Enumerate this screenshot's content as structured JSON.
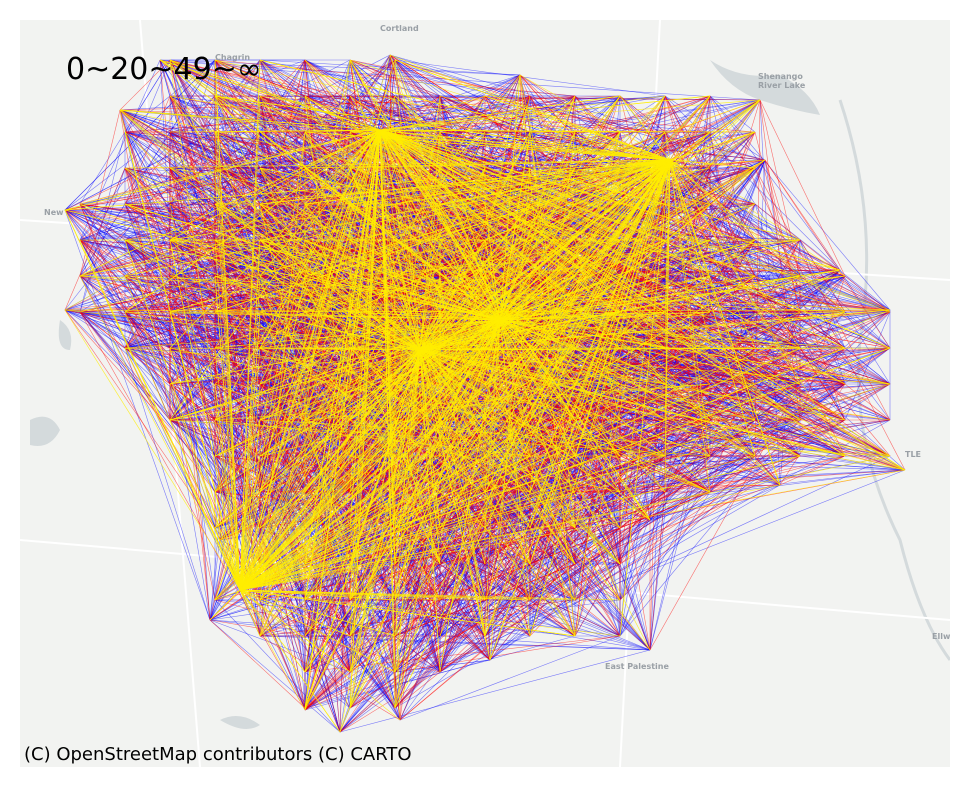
{
  "map": {
    "legend_title": "0~20~49~∞",
    "attribution": "(C) OpenStreetMap contributors (C) CARTO",
    "place_labels": [
      {
        "name": "Cortland",
        "text": "Cortland"
      },
      {
        "name": "chagrin",
        "text": "Chagrin"
      },
      {
        "name": "newton",
        "text": "New"
      },
      {
        "name": "shenango",
        "text": "Shenango River Lake"
      },
      {
        "name": "east-palestine",
        "text": "East Palestine"
      },
      {
        "name": "ellwood",
        "text": "Ellw"
      },
      {
        "name": "newcastle",
        "text": "TLE"
      }
    ],
    "colors": {
      "background": "#f2f3f1",
      "water": "#d4dadc",
      "road": "#ffffff",
      "low": "#0000ff",
      "mid": "#ff0000",
      "high": "#ffee00"
    }
  }
}
